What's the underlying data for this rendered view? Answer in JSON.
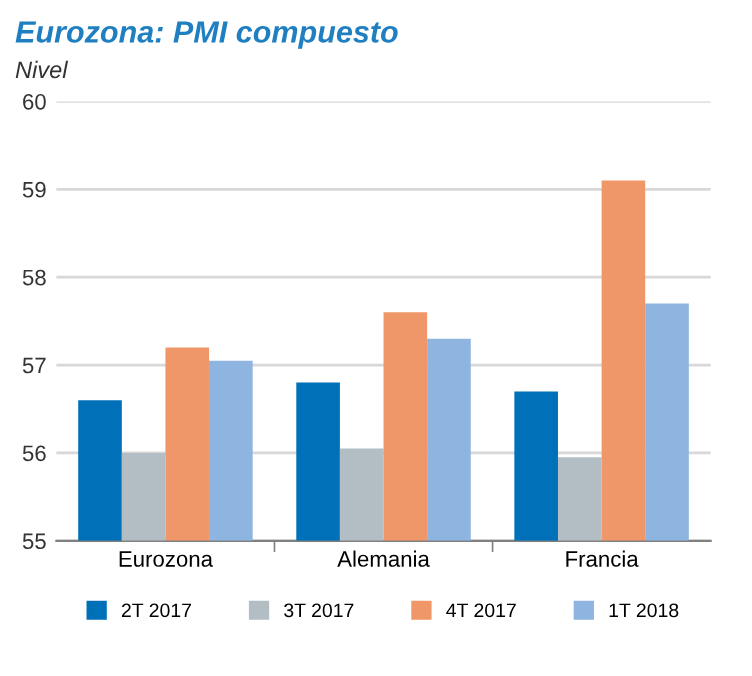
{
  "chart_data": {
    "type": "bar",
    "title": "Eurozona: PMI compuesto",
    "subtitle": "Nivel",
    "categories": [
      "Eurozona",
      "Alemania",
      "Francia"
    ],
    "series": [
      {
        "name": "2T 2017",
        "color": "#0070b8",
        "values": [
          56.6,
          56.8,
          56.7
        ]
      },
      {
        "name": "3T 2017",
        "color": "#b2bec3",
        "values": [
          56.0,
          56.05,
          55.95
        ]
      },
      {
        "name": "4T 2017",
        "color": "#f0976a",
        "values": [
          57.2,
          57.6,
          59.1
        ]
      },
      {
        "name": "1T 2018",
        "color": "#8eb4e0",
        "values": [
          57.05,
          57.3,
          57.7
        ]
      }
    ],
    "ylim": [
      55,
      60
    ],
    "yticks": [
      55,
      56,
      57,
      58,
      59,
      60
    ],
    "grid": "y",
    "legend": "bottom"
  }
}
